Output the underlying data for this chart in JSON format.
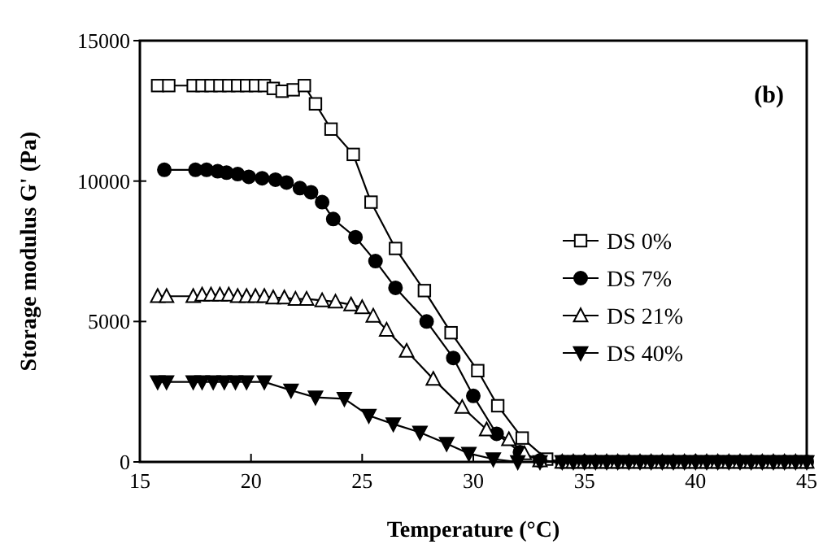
{
  "chart_data": {
    "type": "line",
    "xlabel": "Temperature (°C)",
    "ylabel": "Storage modulus G' (Pa)",
    "annotations": [
      "(b)"
    ],
    "xlim": [
      15,
      45
    ],
    "xticks": [
      15,
      20,
      25,
      30,
      35,
      40,
      45
    ],
    "ylim": [
      0,
      15000
    ],
    "yticks": [
      0,
      5000,
      10000,
      15000
    ],
    "grid": false,
    "legend": "right",
    "series": [
      {
        "name": "DS 0%",
        "color": "#000000",
        "marker": "square",
        "x": [
          15.8,
          16.3,
          17.4,
          17.8,
          18.2,
          18.6,
          19.0,
          19.4,
          19.8,
          20.2,
          20.6,
          21.0,
          21.4,
          21.9,
          22.4,
          22.9,
          23.6,
          24.6,
          25.4,
          26.5,
          27.8,
          29.0,
          30.2,
          31.1,
          32.2,
          33.3,
          34.0,
          34.5,
          35.0,
          35.5,
          36.0,
          36.5,
          37.0,
          37.5,
          38.0,
          38.5,
          39.0,
          39.5,
          40.0,
          40.5,
          41.0,
          41.5,
          42.0,
          42.5,
          43.0,
          43.5,
          44.0,
          44.5,
          45.0
        ],
        "values": [
          13400,
          13400,
          13400,
          13400,
          13400,
          13400,
          13400,
          13400,
          13400,
          13400,
          13400,
          13300,
          13200,
          13250,
          13400,
          12750,
          11850,
          10950,
          9250,
          7600,
          6100,
          4600,
          3250,
          2000,
          850,
          100,
          0,
          0,
          0,
          0,
          0,
          0,
          0,
          0,
          0,
          0,
          0,
          0,
          0,
          0,
          0,
          0,
          0,
          0,
          0,
          0,
          0,
          0,
          0
        ]
      },
      {
        "name": "DS 7%",
        "color": "#000000",
        "marker": "circle",
        "x": [
          16.1,
          17.5,
          18.0,
          18.5,
          18.9,
          19.4,
          19.9,
          20.5,
          21.1,
          21.6,
          22.2,
          22.7,
          23.2,
          23.7,
          24.7,
          25.6,
          26.5,
          27.9,
          29.1,
          30.0,
          31.05,
          32.1,
          33.0,
          34.0,
          34.5,
          35.0,
          35.5,
          36.0,
          36.5,
          37.0,
          37.5,
          38.0,
          38.5,
          39.0,
          39.5,
          40.0,
          40.5,
          41.0,
          41.5,
          42.0,
          42.5,
          43.0,
          43.5,
          44.0,
          44.5,
          45.0
        ],
        "values": [
          10400,
          10400,
          10400,
          10350,
          10300,
          10250,
          10150,
          10100,
          10050,
          9950,
          9750,
          9600,
          9250,
          8650,
          8000,
          7150,
          6200,
          5000,
          3700,
          2350,
          1000,
          350,
          50,
          0,
          0,
          0,
          0,
          0,
          0,
          0,
          0,
          0,
          0,
          0,
          0,
          0,
          0,
          0,
          0,
          0,
          0,
          0,
          0,
          0,
          0,
          0
        ]
      },
      {
        "name": "DS 21%",
        "color": "#000000",
        "marker": "triangle",
        "x": [
          15.8,
          16.2,
          17.4,
          17.8,
          18.2,
          18.6,
          19.0,
          19.4,
          19.8,
          20.2,
          20.6,
          21.0,
          21.5,
          22.0,
          22.5,
          23.2,
          23.8,
          24.5,
          25.0,
          25.5,
          26.1,
          27.0,
          28.2,
          29.5,
          30.6,
          31.6,
          32.3,
          33.0,
          34.0,
          34.5,
          35.0,
          35.5,
          36.0,
          36.5,
          37.0,
          37.5,
          38.0,
          38.5,
          39.0,
          39.5,
          40.0,
          40.5,
          41.0,
          41.5,
          42.0,
          42.5,
          43.0,
          43.5,
          44.0,
          44.5,
          45.0
        ],
        "values": [
          5900,
          5900,
          5900,
          5950,
          5950,
          5950,
          5950,
          5900,
          5900,
          5900,
          5900,
          5850,
          5850,
          5800,
          5800,
          5750,
          5700,
          5600,
          5500,
          5200,
          4700,
          3950,
          2950,
          1950,
          1150,
          800,
          300,
          50,
          0,
          0,
          0,
          0,
          0,
          0,
          0,
          0,
          0,
          0,
          0,
          0,
          0,
          0,
          0,
          0,
          0,
          0,
          0,
          0,
          0,
          0,
          0
        ]
      },
      {
        "name": "DS 40%",
        "color": "#000000",
        "marker": "triangle-down",
        "x": [
          15.8,
          16.2,
          17.4,
          17.8,
          18.3,
          18.8,
          19.3,
          19.8,
          20.6,
          21.8,
          22.9,
          24.2,
          25.3,
          26.4,
          27.6,
          28.8,
          29.8,
          30.9,
          32.0,
          33.0,
          34.0,
          34.5,
          35.0,
          35.5,
          36.0,
          36.5,
          37.0,
          37.5,
          38.0,
          38.5,
          39.0,
          39.5,
          40.0,
          40.5,
          41.0,
          41.5,
          42.0,
          42.5,
          43.0,
          43.5,
          44.0,
          44.5,
          45.0
        ],
        "values": [
          2850,
          2850,
          2850,
          2850,
          2850,
          2850,
          2850,
          2850,
          2850,
          2550,
          2300,
          2250,
          1650,
          1350,
          1050,
          650,
          300,
          100,
          0,
          0,
          0,
          0,
          0,
          0,
          0,
          0,
          0,
          0,
          0,
          0,
          0,
          0,
          0,
          0,
          0,
          0,
          0,
          0,
          0,
          0,
          0,
          0,
          0
        ]
      }
    ]
  }
}
